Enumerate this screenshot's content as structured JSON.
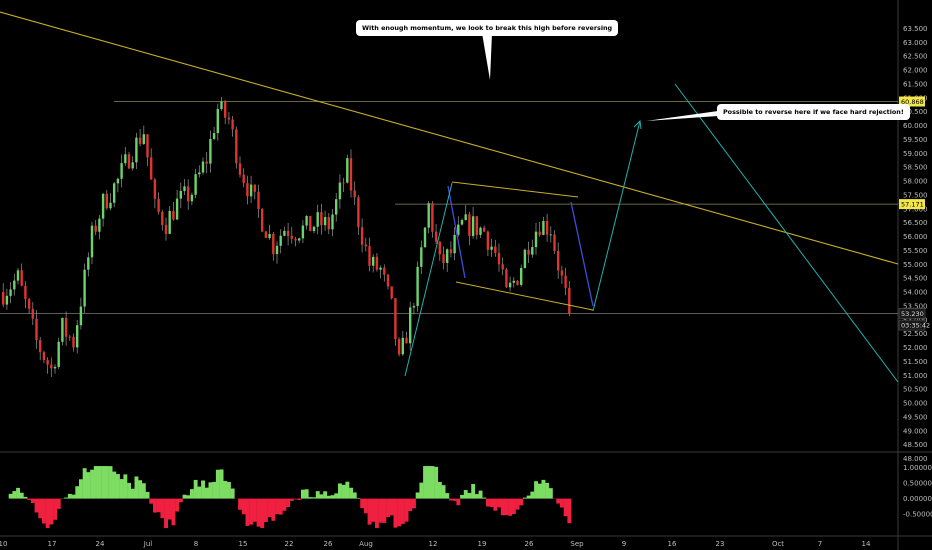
{
  "chart_data": {
    "type": "candlestick",
    "colors": {
      "up": "#6bd36b",
      "down": "#e0342f",
      "wick": "#9a9a9a",
      "trend": "#c8b02a",
      "channel": "#c8b02a",
      "projection": "#1fb2b0",
      "hline": "#8a8a5a",
      "osc_pos": "#7ddc62",
      "osc_neg": "#f02040",
      "blue": "#3f4dd9"
    },
    "y_axis": {
      "min": 48.0,
      "max": 63.55,
      "ticks": [
        "48.000",
        "48.500",
        "49.000",
        "49.500",
        "50.000",
        "50.500",
        "51.000",
        "51.500",
        "52.000",
        "52.500",
        "53.000",
        "53.500",
        "54.000",
        "54.500",
        "55.000",
        "55.500",
        "56.000",
        "56.500",
        "57.000",
        "57.500",
        "58.000",
        "58.500",
        "59.000",
        "59.500",
        "60.000",
        "60.500",
        "61.000",
        "61.500",
        "62.000",
        "62.500",
        "63.000",
        "63.500"
      ]
    },
    "x_axis": {
      "ticks": [
        "10",
        "17",
        "24",
        "Jul",
        "8",
        "15",
        "22",
        "26",
        "Aug",
        "12",
        "19",
        "26",
        "Sep",
        "9",
        "16",
        "23",
        "Oct",
        "7",
        "14"
      ]
    },
    "price_labels": [
      {
        "value": 60.868,
        "text": "60.868",
        "style": "yellow"
      },
      {
        "value": 57.171,
        "text": "57.171",
        "style": "yellow"
      },
      {
        "value": 53.23,
        "text": "53.230",
        "style": "dark"
      },
      {
        "value": 52.81,
        "text": "03:35:42",
        "style": "dark"
      }
    ],
    "horizontal_lines": [
      60.868,
      57.171,
      53.23
    ],
    "annotations": [
      "With enough momentum, we look to break this high before reversing",
      "Possible to reverse here if we face hard rejection!"
    ],
    "oscillator": {
      "ticks": [
        "1.000000",
        "0.500000",
        "0.000000",
        "-0.500000"
      ],
      "range": [
        -1.0,
        1.15
      ]
    },
    "control_points": [
      {
        "d": 0,
        "v": 54.0
      },
      {
        "d": 4,
        "v": 54.5
      },
      {
        "d": 9,
        "v": 52.2
      },
      {
        "d": 13,
        "v": 51.2
      },
      {
        "d": 16,
        "v": 52.7
      },
      {
        "d": 19,
        "v": 52.2
      },
      {
        "d": 24,
        "v": 56.0
      },
      {
        "d": 27,
        "v": 57.2
      },
      {
        "d": 31,
        "v": 58.0
      },
      {
        "d": 34,
        "v": 58.9
      },
      {
        "d": 38,
        "v": 59.8
      },
      {
        "d": 41,
        "v": 57.0
      },
      {
        "d": 44,
        "v": 56.5
      },
      {
        "d": 47,
        "v": 57.2
      },
      {
        "d": 51,
        "v": 57.6
      },
      {
        "d": 55,
        "v": 58.8
      },
      {
        "d": 58,
        "v": 60.6
      },
      {
        "d": 61,
        "v": 60.2
      },
      {
        "d": 64,
        "v": 58.5
      },
      {
        "d": 67,
        "v": 57.5
      },
      {
        "d": 70,
        "v": 56.6
      },
      {
        "d": 73,
        "v": 55.7
      },
      {
        "d": 76,
        "v": 56.3
      },
      {
        "d": 79,
        "v": 56.2
      },
      {
        "d": 82,
        "v": 56.3
      },
      {
        "d": 85,
        "v": 56.5
      },
      {
        "d": 88,
        "v": 56.4
      },
      {
        "d": 91,
        "v": 57.6
      },
      {
        "d": 93,
        "v": 58.4
      },
      {
        "d": 96,
        "v": 56.6
      },
      {
        "d": 99,
        "v": 55.0
      },
      {
        "d": 102,
        "v": 54.8
      },
      {
        "d": 105,
        "v": 53.4
      },
      {
        "d": 107,
        "v": 51.4
      },
      {
        "d": 109,
        "v": 52.5
      },
      {
        "d": 112,
        "v": 54.5
      },
      {
        "d": 115,
        "v": 57.1
      },
      {
        "d": 118,
        "v": 55.0
      },
      {
        "d": 121,
        "v": 55.4
      },
      {
        "d": 124,
        "v": 56.4
      },
      {
        "d": 127,
        "v": 56.4
      },
      {
        "d": 130,
        "v": 56.2
      },
      {
        "d": 133,
        "v": 55.4
      },
      {
        "d": 136,
        "v": 53.9
      },
      {
        "d": 139,
        "v": 54.6
      },
      {
        "d": 142,
        "v": 55.8
      },
      {
        "d": 145,
        "v": 56.5
      },
      {
        "d": 148,
        "v": 56.3
      },
      {
        "d": 150,
        "v": 55.0
      },
      {
        "d": 153,
        "v": 53.3
      }
    ]
  }
}
